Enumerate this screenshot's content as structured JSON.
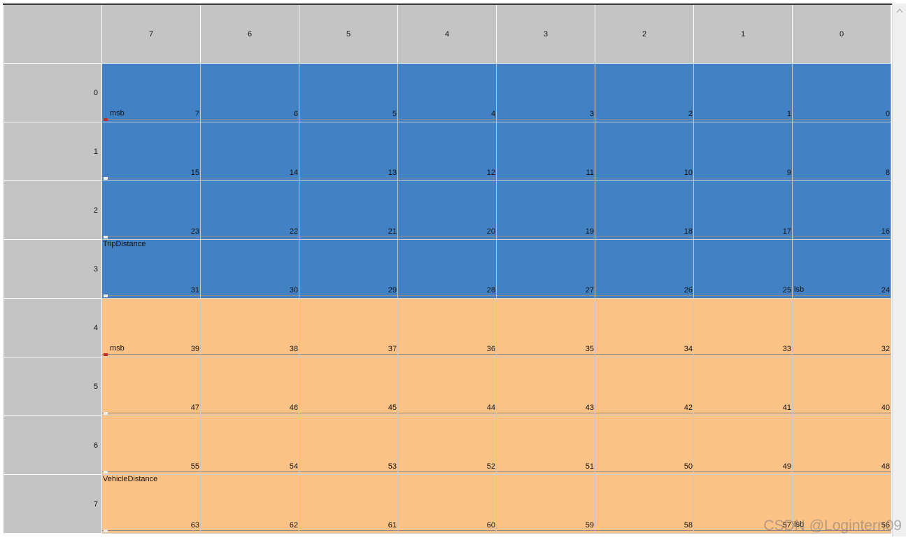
{
  "grid": {
    "column_headers": [
      7,
      6,
      5,
      4,
      3,
      2,
      1,
      0
    ],
    "signals": [
      {
        "name": "TripDistance",
        "msb_label": "msb",
        "lsb_label": "lsb",
        "color": "#4282c4",
        "rows": [
          {
            "header": 0,
            "bits": [
              7,
              6,
              5,
              4,
              3,
              2,
              1,
              0
            ]
          },
          {
            "header": 1,
            "bits": [
              15,
              14,
              13,
              12,
              11,
              10,
              9,
              8
            ]
          },
          {
            "header": 2,
            "bits": [
              23,
              22,
              21,
              20,
              19,
              18,
              17,
              16
            ]
          },
          {
            "header": 3,
            "bits": [
              31,
              30,
              29,
              28,
              27,
              26,
              25,
              24
            ]
          }
        ]
      },
      {
        "name": "VehicleDistance",
        "msb_label": "msb",
        "lsb_label": "lsb",
        "color": "#fdc286",
        "rows": [
          {
            "header": 4,
            "bits": [
              39,
              38,
              37,
              36,
              35,
              34,
              33,
              32
            ]
          },
          {
            "header": 5,
            "bits": [
              47,
              46,
              45,
              44,
              43,
              42,
              41,
              40
            ]
          },
          {
            "header": 6,
            "bits": [
              55,
              54,
              53,
              52,
              51,
              50,
              49,
              48
            ]
          },
          {
            "header": 7,
            "bits": [
              63,
              62,
              61,
              60,
              59,
              58,
              57,
              56
            ]
          }
        ]
      }
    ]
  },
  "watermark": "CSDN @Logintern09"
}
